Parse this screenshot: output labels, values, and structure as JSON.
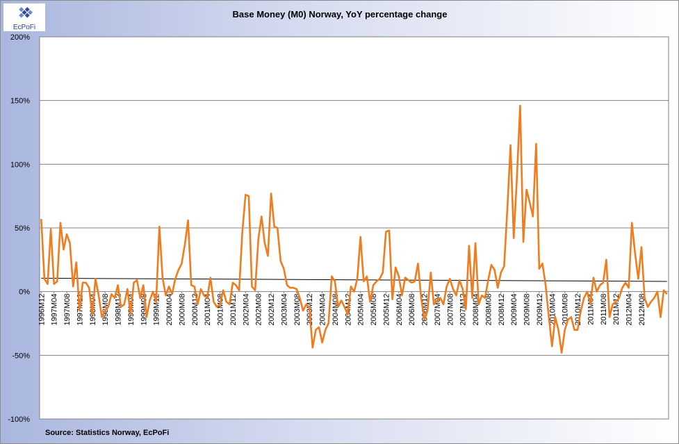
{
  "logo": {
    "text": "EcPoFi"
  },
  "source": "Source: Statistics Norway, EcPoFi",
  "colors": {
    "series": "#f07c1e",
    "trend": "#000000",
    "grid": "#808080",
    "plot_bg": "#ffffff"
  },
  "chart_data": {
    "type": "line",
    "title": "Base Money (M0) Norway, YoY percentage change",
    "xlabel": "",
    "ylabel": "",
    "ylim": [
      -1.0,
      2.0
    ],
    "yticks": [
      "200%",
      "150%",
      "100%",
      "50%",
      "0%",
      "-50%",
      "-100%"
    ],
    "ytick_values": [
      2.0,
      1.5,
      1.0,
      0.5,
      0.0,
      -0.5,
      -1.0
    ],
    "grid": true,
    "legend": "none",
    "x_start": "1996M12",
    "x_end": "2012M08",
    "x_tick_labels": [
      "1996M12",
      "1997M04",
      "1997M08",
      "1997M12",
      "1998M04",
      "1998M08",
      "1998M12",
      "1999M04",
      "1999M08",
      "1999M12",
      "2000M04",
      "2000M08",
      "2000M12",
      "2001M04",
      "2001M08",
      "2001M12",
      "2002M04",
      "2002M08",
      "2002M12",
      "2003M04",
      "2003M08",
      "2003M12",
      "2004M04",
      "2004M08",
      "2004M12",
      "2005M04",
      "2005M08",
      "2005M12",
      "2006M04",
      "2006M08",
      "2006M12",
      "2007M04",
      "2007M08",
      "2007M12",
      "2008M04",
      "2008M08",
      "2008M12",
      "2009M04",
      "2009M08",
      "2009M12",
      "2010M04",
      "2010M08",
      "2010M12",
      "2011M04",
      "2011M08",
      "2011M12",
      "2012M04",
      "2012M08"
    ],
    "series": [
      {
        "values": [
          0.57,
          0.1,
          0.06,
          0.49,
          0.06,
          0.08,
          0.54,
          0.33,
          0.45,
          0.38,
          0.04,
          0.23,
          -0.15,
          0.07,
          0.07,
          0.03,
          -0.18,
          0.1,
          -0.03,
          -0.2,
          -0.15,
          -0.12,
          -0.02,
          -0.05,
          0.05,
          -0.12,
          -0.1,
          0.02,
          -0.18,
          0.07,
          0.09,
          -0.05,
          0.05,
          -0.2,
          -0.07,
          0.0,
          -0.08,
          0.51,
          0.11,
          -0.03,
          0.04,
          -0.02,
          0.1,
          0.17,
          0.22,
          0.37,
          0.56,
          0.05,
          0.04,
          -0.1,
          0.02,
          -0.03,
          -0.05,
          0.11,
          -0.08,
          -0.12,
          -0.1,
          0.01,
          -0.08,
          -0.1,
          0.07,
          0.05,
          0.01,
          0.47,
          0.76,
          0.75,
          0.04,
          0.01,
          0.41,
          0.59,
          0.38,
          0.28,
          0.77,
          0.51,
          0.5,
          0.24,
          0.18,
          0.05,
          0.03,
          0.03,
          0.02,
          -0.05,
          -0.15,
          -0.1,
          -0.13,
          -0.44,
          -0.3,
          -0.28,
          -0.4,
          -0.3,
          -0.25,
          0.12,
          0.08,
          -0.12,
          -0.07,
          -0.12,
          -0.18,
          0.04,
          0.0,
          0.1,
          0.43,
          0.08,
          0.12,
          -0.08,
          0.05,
          0.08,
          0.1,
          0.15,
          0.47,
          0.48,
          -0.06,
          0.19,
          0.12,
          -0.03,
          0.11,
          0.09,
          0.07,
          0.08,
          0.22,
          -0.05,
          -0.22,
          -0.15,
          0.15,
          -0.1,
          -0.07,
          -0.05,
          -0.1,
          0.04,
          0.1,
          0.02,
          -0.03,
          0.09,
          0.02,
          -0.14,
          0.36,
          -0.05,
          0.38,
          -0.1,
          -0.03,
          -0.05,
          0.09,
          0.21,
          0.17,
          0.03,
          0.15,
          0.2,
          0.65,
          1.15,
          0.42,
          0.9,
          1.46,
          0.39,
          0.8,
          0.7,
          0.59,
          1.16,
          0.18,
          0.22,
          0.05,
          -0.2,
          -0.43,
          -0.2,
          -0.3,
          -0.48,
          -0.3,
          -0.22,
          -0.2,
          -0.3,
          -0.3,
          -0.15,
          -0.05,
          0.0,
          -0.1,
          0.11,
          0.0,
          0.05,
          0.07,
          0.25,
          -0.2,
          -0.1,
          -0.08,
          -0.05,
          0.03,
          0.07,
          0.03,
          0.54,
          0.3,
          0.1,
          0.35,
          -0.05,
          -0.12,
          -0.08,
          -0.05,
          0.0,
          -0.2,
          0.01,
          -0.02
        ]
      }
    ],
    "trend": {
      "start": 0.105,
      "end": 0.08
    }
  }
}
